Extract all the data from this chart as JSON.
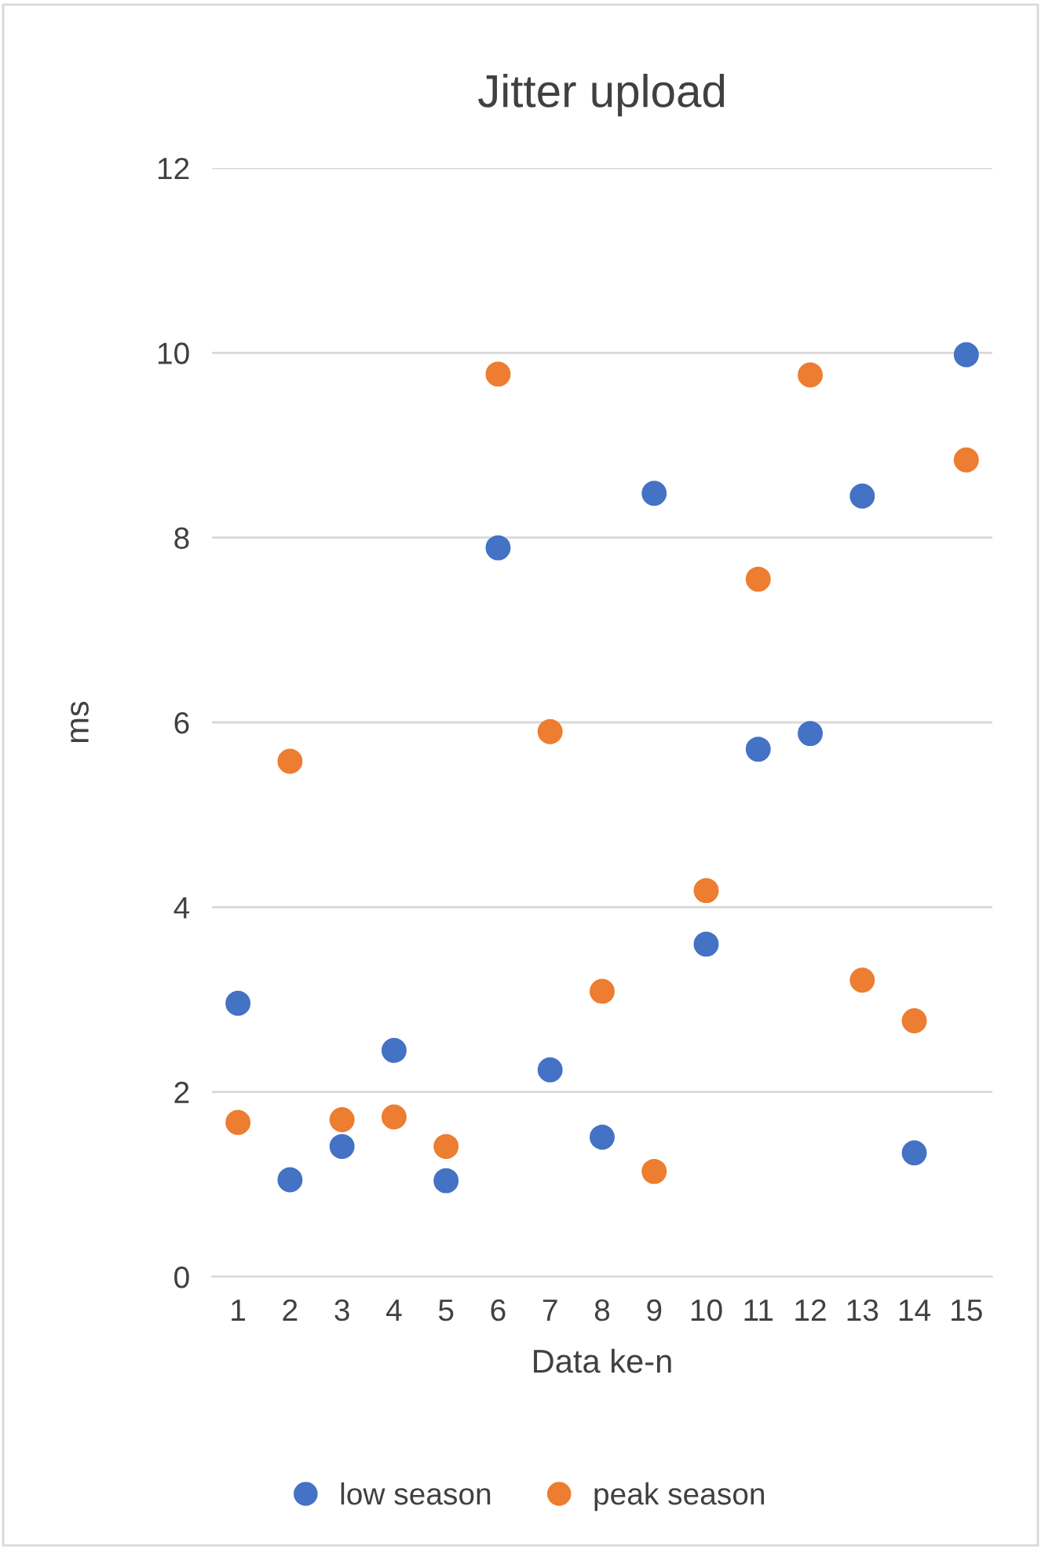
{
  "chart_data": {
    "type": "scatter",
    "title": "Jitter upload",
    "xlabel": "Data ke-n",
    "ylabel": "ms",
    "categories": [
      "1",
      "2",
      "3",
      "4",
      "5",
      "6",
      "7",
      "8",
      "9",
      "10",
      "11",
      "12",
      "13",
      "14",
      "15"
    ],
    "series": [
      {
        "name": "low season",
        "color": "#4472c4",
        "values": [
          2.96,
          1.05,
          1.41,
          2.45,
          1.04,
          7.89,
          2.24,
          1.51,
          8.48,
          3.6,
          5.71,
          5.88,
          8.45,
          1.34,
          9.98
        ]
      },
      {
        "name": "peak season",
        "color": "#ed7d31",
        "values": [
          1.67,
          5.58,
          1.7,
          1.73,
          1.41,
          9.77,
          5.9,
          3.09,
          1.14,
          4.18,
          7.55,
          9.76,
          3.21,
          2.77,
          8.84
        ]
      }
    ],
    "ylim": [
      0,
      12
    ],
    "yticks": [
      0,
      2,
      4,
      6,
      8,
      10,
      12
    ],
    "grid": "y",
    "legend": "bottom",
    "marker": "circle"
  }
}
